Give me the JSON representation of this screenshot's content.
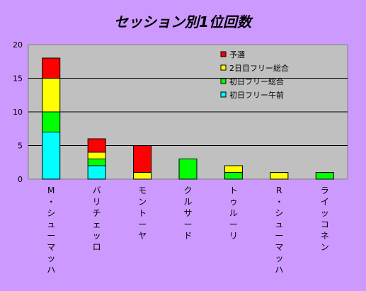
{
  "colors": {
    "background": "#cc99ff",
    "plot_area": "#c0c0c0"
  },
  "chart_data": {
    "type": "bar",
    "stacked": true,
    "title": "セッション別1位回数",
    "xlabel": "",
    "ylabel": "",
    "ylim": [
      0,
      20
    ],
    "yticks": [
      0,
      5,
      10,
      15,
      20
    ],
    "grid": true,
    "legend_position": "top-right",
    "categories": [
      "M・シューマッハ",
      "バリチェッロ",
      "モントーヤ",
      "クルサード",
      "トゥルーリ",
      "R・シューマッハ",
      "ライッコネン"
    ],
    "series": [
      {
        "name": "初日フリー午前",
        "color": "#00ffff",
        "values": [
          7,
          2,
          0,
          0,
          0,
          0,
          0
        ]
      },
      {
        "name": "初日フリー総合",
        "color": "#00ff00",
        "values": [
          3,
          1,
          0,
          3,
          1,
          0,
          1
        ]
      },
      {
        "name": "2日目フリー総合",
        "color": "#ffff00",
        "values": [
          5,
          1,
          1,
          0,
          1,
          1,
          0
        ]
      },
      {
        "name": "予選",
        "color": "#ff0000",
        "values": [
          3,
          2,
          4,
          0,
          0,
          0,
          0
        ]
      }
    ]
  }
}
